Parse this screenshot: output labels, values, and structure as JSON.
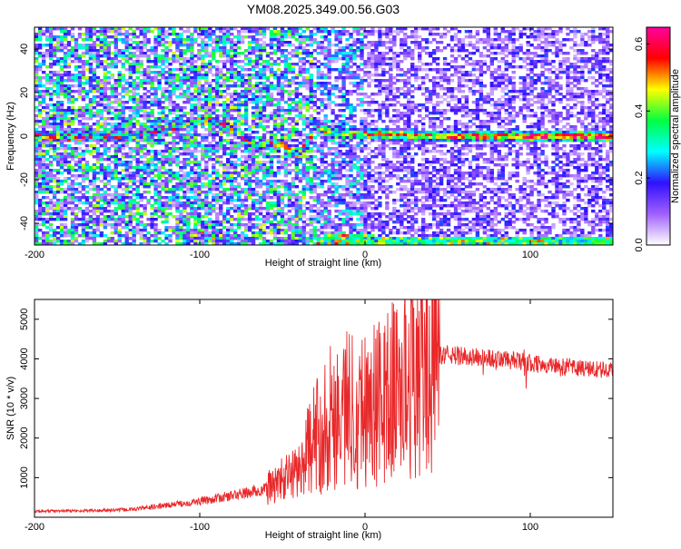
{
  "title": "YM08.2025.349.00.56.G03",
  "chart_data": [
    {
      "type": "heatmap",
      "xlabel": "Height of straight line (km)",
      "ylabel": "Frequency (Hz)",
      "xlim": [
        -200,
        150
      ],
      "ylim": [
        -50,
        50
      ],
      "xticks": [
        -200,
        -100,
        0,
        100
      ],
      "yticks": [
        -40,
        -20,
        0,
        20,
        40
      ],
      "colorbar": {
        "label": "Normalized spectral amplitude",
        "range": [
          0.0,
          0.65
        ],
        "ticks": [
          0.0,
          0.2,
          0.4,
          0.6
        ],
        "colormap": [
          "#ffffff",
          "#a060ff",
          "#3010ff",
          "#00ffff",
          "#00ff40",
          "#ffff00",
          "#ff0000",
          "#ff00a0"
        ]
      },
      "features": [
        {
          "name": "doppler-trace",
          "points": [
            [
              -140,
              0
            ],
            [
              -110,
              5
            ],
            [
              -95,
              8
            ],
            [
              -80,
              3
            ],
            [
              -65,
              -5
            ],
            [
              -50,
              -3
            ],
            [
              -40,
              -10
            ],
            [
              -30,
              5
            ],
            [
              -20,
              1
            ],
            [
              0,
              1
            ],
            [
              50,
              0
            ],
            [
              100,
              0
            ],
            [
              150,
              0
            ]
          ]
        },
        {
          "name": "lower-trace",
          "points": [
            [
              -100,
              -45
            ],
            [
              -85,
              -47
            ],
            [
              -60,
              -49
            ],
            [
              -20,
              -48
            ],
            [
              0,
              -48
            ],
            [
              50,
              -49
            ],
            [
              150,
              -49
            ]
          ]
        }
      ]
    },
    {
      "type": "line",
      "xlabel": "Height of straight line (km)",
      "ylabel": "SNR (10 * v/v)",
      "xlim": [
        -200,
        150
      ],
      "ylim": [
        0,
        5500
      ],
      "xticks": [
        -200,
        -100,
        0,
        100
      ],
      "yticks": [
        1000,
        2000,
        3000,
        4000,
        5000
      ],
      "color": "#e8282a",
      "envelope": [
        [
          -200,
          150
        ],
        [
          -160,
          170
        ],
        [
          -140,
          200
        ],
        [
          -120,
          300
        ],
        [
          -100,
          400
        ],
        [
          -80,
          550
        ],
        [
          -60,
          700
        ],
        [
          -40,
          1200
        ],
        [
          -30,
          2000
        ],
        [
          -20,
          2600
        ],
        [
          -10,
          2800
        ],
        [
          0,
          2800
        ],
        [
          10,
          2900
        ],
        [
          20,
          3300
        ],
        [
          30,
          3800
        ],
        [
          40,
          4100
        ],
        [
          50,
          4100
        ],
        [
          80,
          4000
        ],
        [
          100,
          3900
        ],
        [
          120,
          3800
        ],
        [
          150,
          3700
        ]
      ]
    }
  ]
}
